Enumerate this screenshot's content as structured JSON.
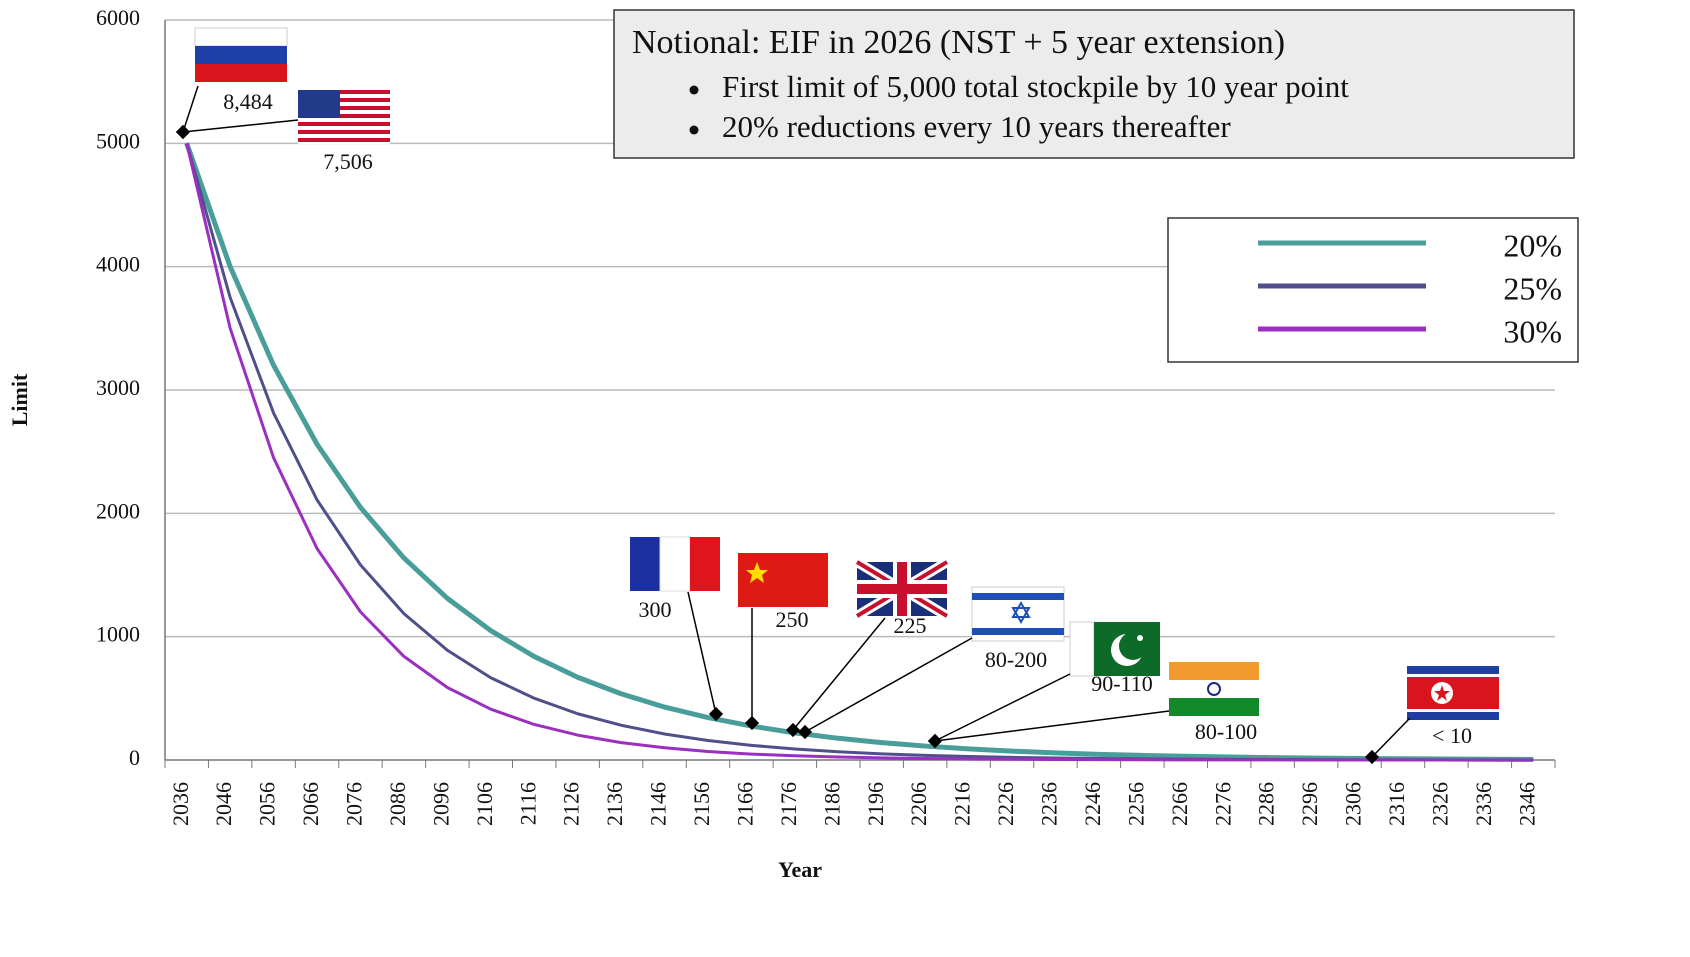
{
  "chart_data": {
    "type": "line",
    "title": "Notional: EIF in 2026 (NST + 5 year extension)",
    "bullets": [
      "First limit of 5,000 total stockpile by 10 year point",
      "20% reductions every 10 years thereafter"
    ],
    "x_label": "Year",
    "y_label": "Limit",
    "categories": [
      "2036",
      "2046",
      "2056",
      "2066",
      "2076",
      "2086",
      "2096",
      "2106",
      "2116",
      "2126",
      "2136",
      "2146",
      "2156",
      "2166",
      "2176",
      "2186",
      "2196",
      "2206",
      "2216",
      "2226",
      "2236",
      "2246",
      "2256",
      "2266",
      "2276",
      "2286",
      "2296",
      "2306",
      "2316",
      "2326",
      "2336",
      "2346"
    ],
    "series": [
      {
        "name": "20%",
        "color": "#4a9e9a",
        "values": [
          5000,
          4000,
          3200,
          2560,
          2048,
          1638,
          1311,
          1049,
          839,
          671,
          537,
          429,
          344,
          275,
          220,
          176,
          141,
          113,
          90,
          72,
          58,
          46,
          37,
          30,
          24,
          19,
          15,
          12,
          10,
          8,
          6,
          5
        ]
      },
      {
        "name": "25%",
        "color": "#4f4f8a",
        "values": [
          5000,
          3750,
          2813,
          2109,
          1582,
          1187,
          890,
          667,
          501,
          375,
          282,
          211,
          158,
          119,
          89,
          67,
          50,
          38,
          28,
          21,
          16,
          12,
          9,
          7,
          5,
          4,
          3,
          2,
          2,
          1,
          1,
          1
        ]
      },
      {
        "name": "30%",
        "color": "#9b2fc0",
        "values": [
          5000,
          3500,
          2450,
          1715,
          1201,
          840,
          588,
          412,
          288,
          202,
          141,
          99,
          69,
          48,
          34,
          24,
          17,
          12,
          8,
          6,
          4,
          3,
          2,
          1,
          1,
          1,
          0,
          0,
          0,
          0,
          0,
          0
        ]
      }
    ],
    "annotations": [
      "8,484",
      "7,506",
      "300",
      "250",
      "225",
      "80-200",
      "90-110",
      "80-100",
      "< 10"
    ],
    "ylim": [
      0,
      6000
    ],
    "yticks": [
      0,
      1000,
      2000,
      3000,
      4000,
      5000,
      6000
    ],
    "grid": true,
    "legend": "upper right"
  }
}
